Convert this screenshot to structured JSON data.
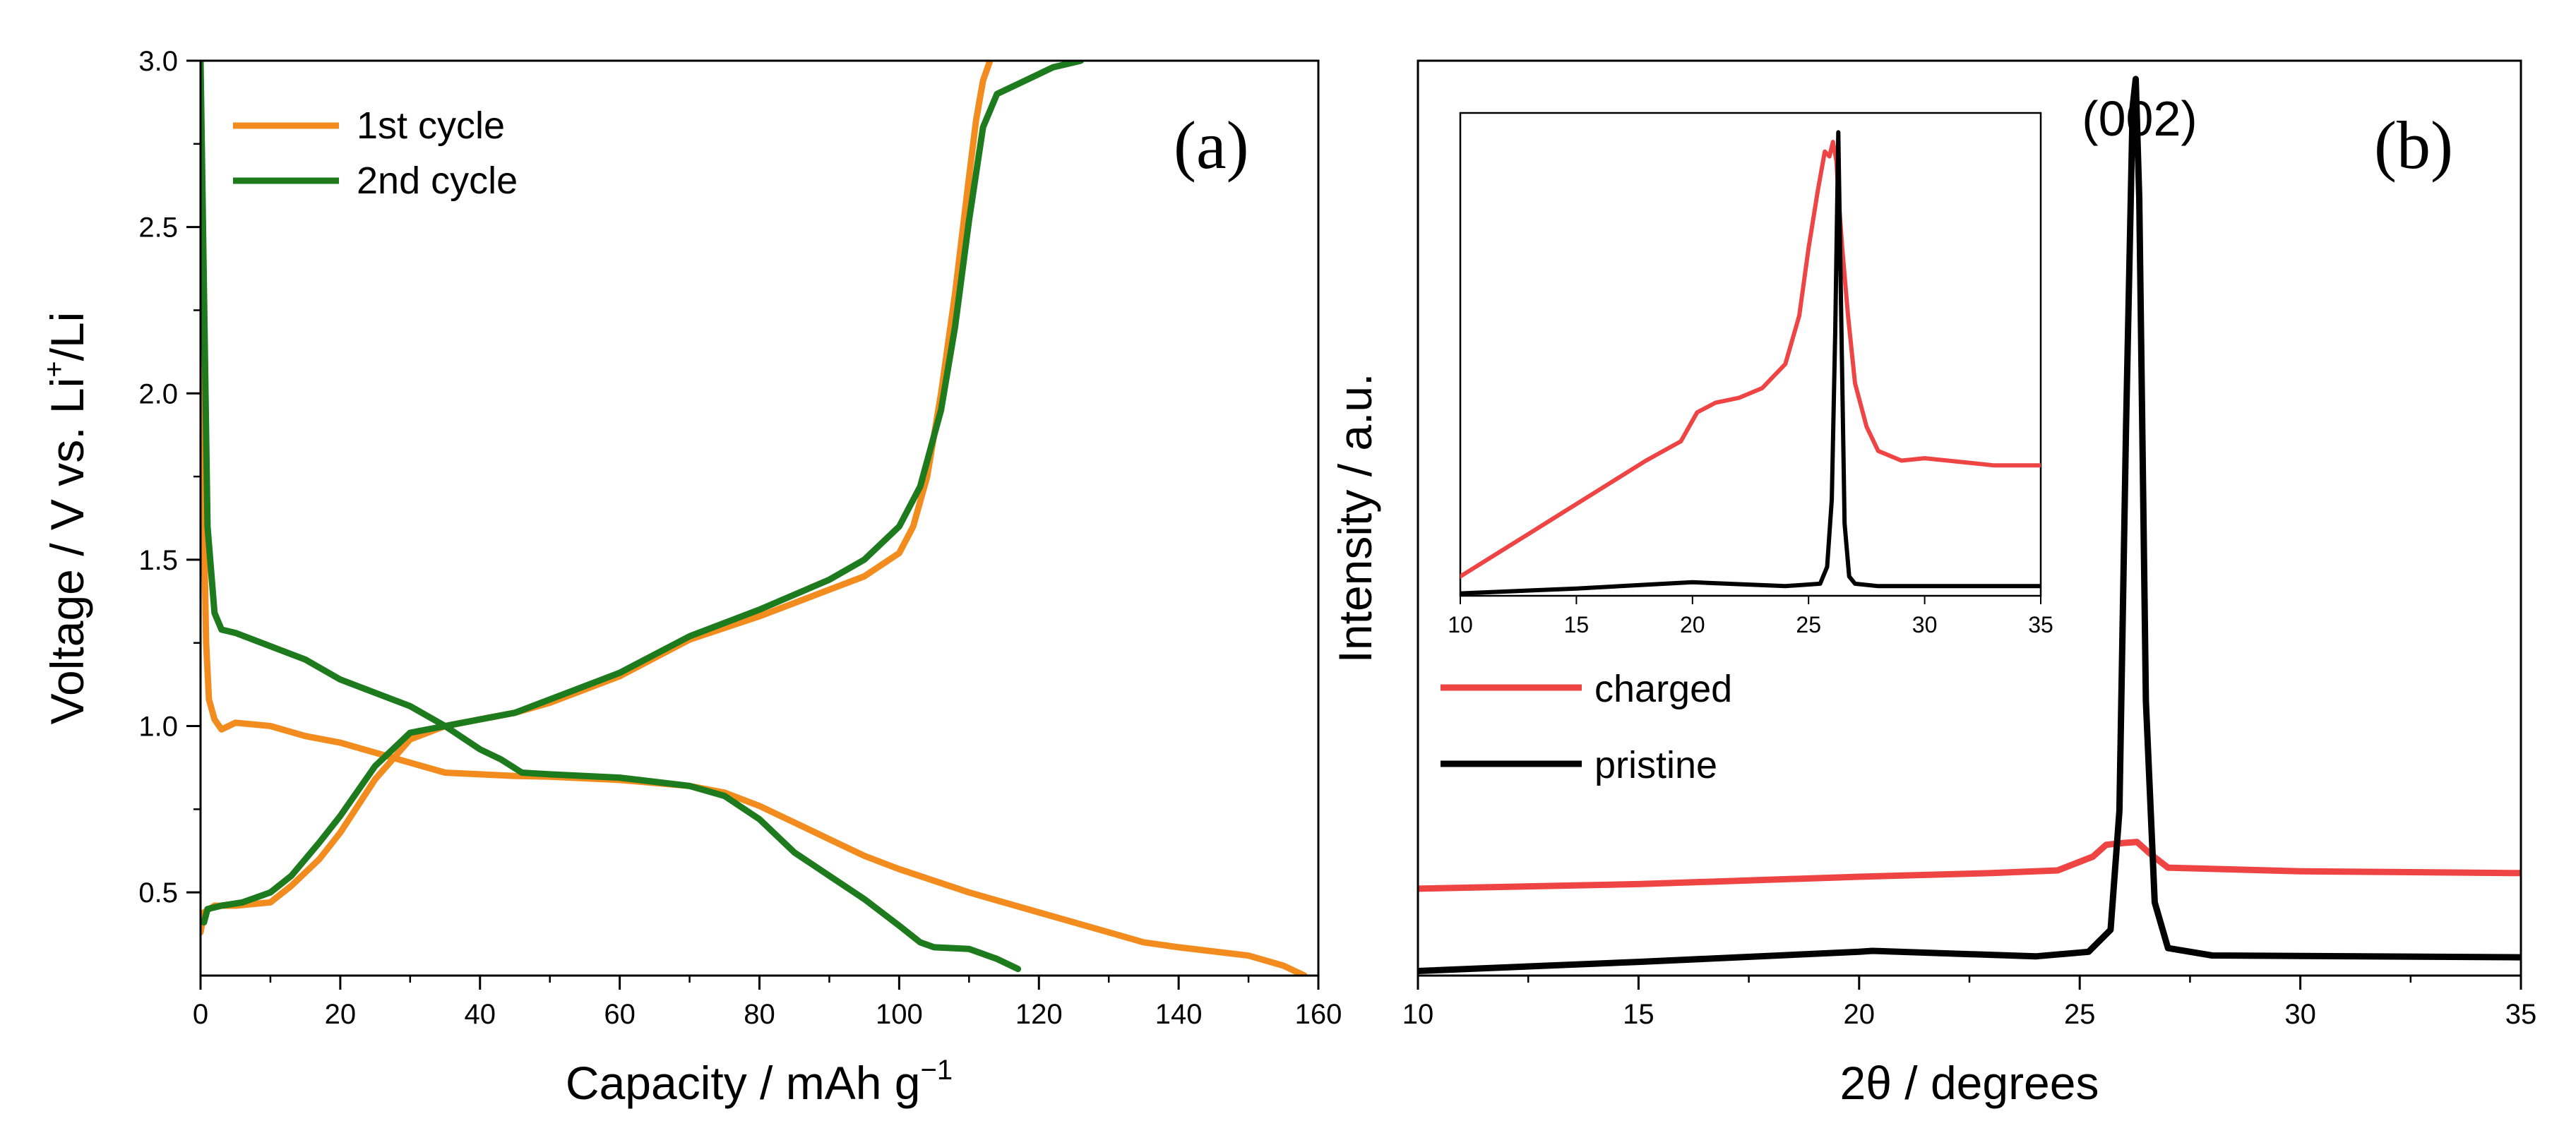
{
  "chart_data": [
    {
      "id": "a",
      "type": "line",
      "panel_label": "(a)",
      "xlabel": "Capacity / mAh g",
      "xlabel_sup": "−1",
      "ylabel_pre": "Voltage / V vs. Li",
      "ylabel_sup": "+",
      "ylabel_post": "/Li",
      "xlim": [
        0,
        160
      ],
      "ylim": [
        0.25,
        3.0
      ],
      "xticks": [
        0,
        20,
        40,
        60,
        80,
        100,
        120,
        140,
        160
      ],
      "yticks": [
        0.5,
        1.0,
        1.5,
        2.0,
        2.5,
        3.0
      ],
      "xtick_labels": [
        "0",
        "20",
        "40",
        "60",
        "80",
        "100",
        "120",
        "140",
        "160"
      ],
      "ytick_labels": [
        "0.5",
        "1.0",
        "1.5",
        "2.0",
        "2.5",
        "3.0"
      ],
      "legend_position": "top-left",
      "series": [
        {
          "name": "1st cycle",
          "color": "#f28c1e",
          "segment": "discharge",
          "x": [
            0,
            0.4,
            0.8,
            1.2,
            2,
            3,
            5,
            10,
            15,
            20,
            25,
            30,
            35,
            40,
            45,
            50,
            60,
            70,
            75,
            80,
            85,
            90,
            95,
            100,
            110,
            120,
            130,
            135,
            140,
            150,
            155,
            158
          ],
          "y": [
            2.4,
            1.7,
            1.25,
            1.08,
            1.02,
            0.99,
            1.01,
            1.0,
            0.97,
            0.95,
            0.92,
            0.89,
            0.86,
            0.855,
            0.85,
            0.848,
            0.838,
            0.82,
            0.8,
            0.76,
            0.71,
            0.66,
            0.61,
            0.57,
            0.5,
            0.44,
            0.38,
            0.35,
            0.335,
            0.31,
            0.28,
            0.25
          ]
        },
        {
          "name": "1st cycle",
          "color": "#f28c1e",
          "segment": "charge",
          "x": [
            0,
            0.5,
            2,
            5,
            10,
            13,
            17,
            20,
            25,
            30,
            35,
            40,
            45,
            50,
            60,
            70,
            80,
            90,
            95,
            100,
            102,
            104,
            106,
            108,
            110,
            111,
            112,
            113
          ],
          "y": [
            0.38,
            0.44,
            0.46,
            0.46,
            0.47,
            0.52,
            0.6,
            0.68,
            0.84,
            0.96,
            1.0,
            1.02,
            1.04,
            1.07,
            1.15,
            1.26,
            1.33,
            1.41,
            1.45,
            1.52,
            1.6,
            1.75,
            2.0,
            2.3,
            2.65,
            2.82,
            2.94,
            3.0
          ]
        },
        {
          "name": "2nd cycle",
          "color": "#1d7a1d",
          "segment": "discharge",
          "x": [
            0,
            0.5,
            1,
            2,
            3,
            5,
            10,
            15,
            20,
            25,
            30,
            35,
            40,
            43,
            46,
            50,
            60,
            70,
            75,
            80,
            85,
            90,
            95,
            100,
            103,
            105,
            110,
            114,
            117
          ],
          "y": [
            3.0,
            2.3,
            1.6,
            1.34,
            1.29,
            1.28,
            1.24,
            1.2,
            1.14,
            1.1,
            1.06,
            1.0,
            0.93,
            0.9,
            0.86,
            0.855,
            0.845,
            0.82,
            0.79,
            0.72,
            0.62,
            0.55,
            0.48,
            0.4,
            0.35,
            0.335,
            0.33,
            0.3,
            0.27
          ]
        },
        {
          "name": "2nd cycle",
          "color": "#1d7a1d",
          "segment": "charge",
          "x": [
            0.5,
            1,
            3,
            6,
            10,
            13,
            17,
            20,
            25,
            30,
            35,
            40,
            45,
            50,
            60,
            70,
            80,
            90,
            95,
            100,
            103,
            106,
            108,
            110,
            112,
            114,
            118,
            122,
            126
          ],
          "y": [
            0.41,
            0.45,
            0.46,
            0.47,
            0.5,
            0.55,
            0.65,
            0.73,
            0.88,
            0.98,
            1.0,
            1.02,
            1.04,
            1.08,
            1.16,
            1.27,
            1.35,
            1.44,
            1.5,
            1.6,
            1.72,
            1.95,
            2.2,
            2.52,
            2.8,
            2.9,
            2.94,
            2.98,
            3.0
          ]
        }
      ]
    },
    {
      "id": "b",
      "type": "line",
      "panel_label": "(b)",
      "peak_label": "(002)",
      "xlabel": "2θ / degrees",
      "ylabel": "Intensity / a.u.",
      "xlim": [
        10,
        35
      ],
      "ylim": [
        0,
        100
      ],
      "xticks": [
        10,
        15,
        20,
        25,
        30,
        35
      ],
      "xtick_labels": [
        "10",
        "15",
        "20",
        "25",
        "30",
        "35"
      ],
      "legend_position": "lower-left",
      "series": [
        {
          "name": "charged",
          "color": "#ef4444",
          "x": [
            10,
            15,
            20,
            23,
            24.5,
            25.3,
            25.6,
            26.0,
            26.3,
            26.6,
            27.0,
            30,
            35
          ],
          "y": [
            9.5,
            10.0,
            10.8,
            11.2,
            11.5,
            13.0,
            14.3,
            14.5,
            14.6,
            13.3,
            11.8,
            11.4,
            11.2
          ]
        },
        {
          "name": "pristine",
          "color": "#000000",
          "x": [
            10,
            15,
            20,
            20.3,
            24,
            25.2,
            25.7,
            25.9,
            26.05,
            26.2,
            26.27,
            26.35,
            26.5,
            26.7,
            27.0,
            28,
            35
          ],
          "y": [
            0.5,
            1.5,
            2.6,
            2.7,
            2.1,
            2.6,
            5.0,
            18,
            60,
            95,
            98,
            85,
            30,
            8,
            3.0,
            2.2,
            2.0
          ]
        }
      ],
      "inset": {
        "xlim": [
          10,
          35
        ],
        "ylim": [
          0,
          100
        ],
        "xticks": [
          10,
          15,
          20,
          25,
          30,
          35
        ],
        "xtick_labels": [
          "10",
          "15",
          "20",
          "25",
          "30",
          "35"
        ],
        "series": [
          {
            "name": "charged",
            "color": "#ef4444",
            "x": [
              10,
              12,
              14,
              16,
              18,
              19.5,
              20.2,
              21,
              22,
              23,
              24,
              24.6,
              25.0,
              25.4,
              25.7,
              25.9,
              26.05,
              26.2,
              26.3,
              26.45,
              26.7,
              27.0,
              27.5,
              28,
              29,
              30,
              31,
              32,
              33,
              34,
              35
            ],
            "y": [
              4,
              10,
              16,
              22,
              28,
              32,
              38,
              40,
              41,
              43,
              48,
              58,
              72,
              84,
              92,
              91,
              94,
              90,
              82,
              72,
              58,
              44,
              35,
              30,
              28,
              28.5,
              28,
              27.5,
              27,
              27,
              27
            ]
          },
          {
            "name": "pristine",
            "color": "#000000",
            "x": [
              10,
              15,
              20,
              24,
              25.5,
              25.8,
              26.0,
              26.15,
              26.28,
              26.4,
              26.55,
              26.75,
              27.0,
              28,
              35
            ],
            "y": [
              0.5,
              1.5,
              2.8,
              2.0,
              2.5,
              6,
              20,
              55,
              96,
              60,
              15,
              4,
              2.5,
              2.0,
              2.0
            ]
          }
        ]
      }
    }
  ]
}
